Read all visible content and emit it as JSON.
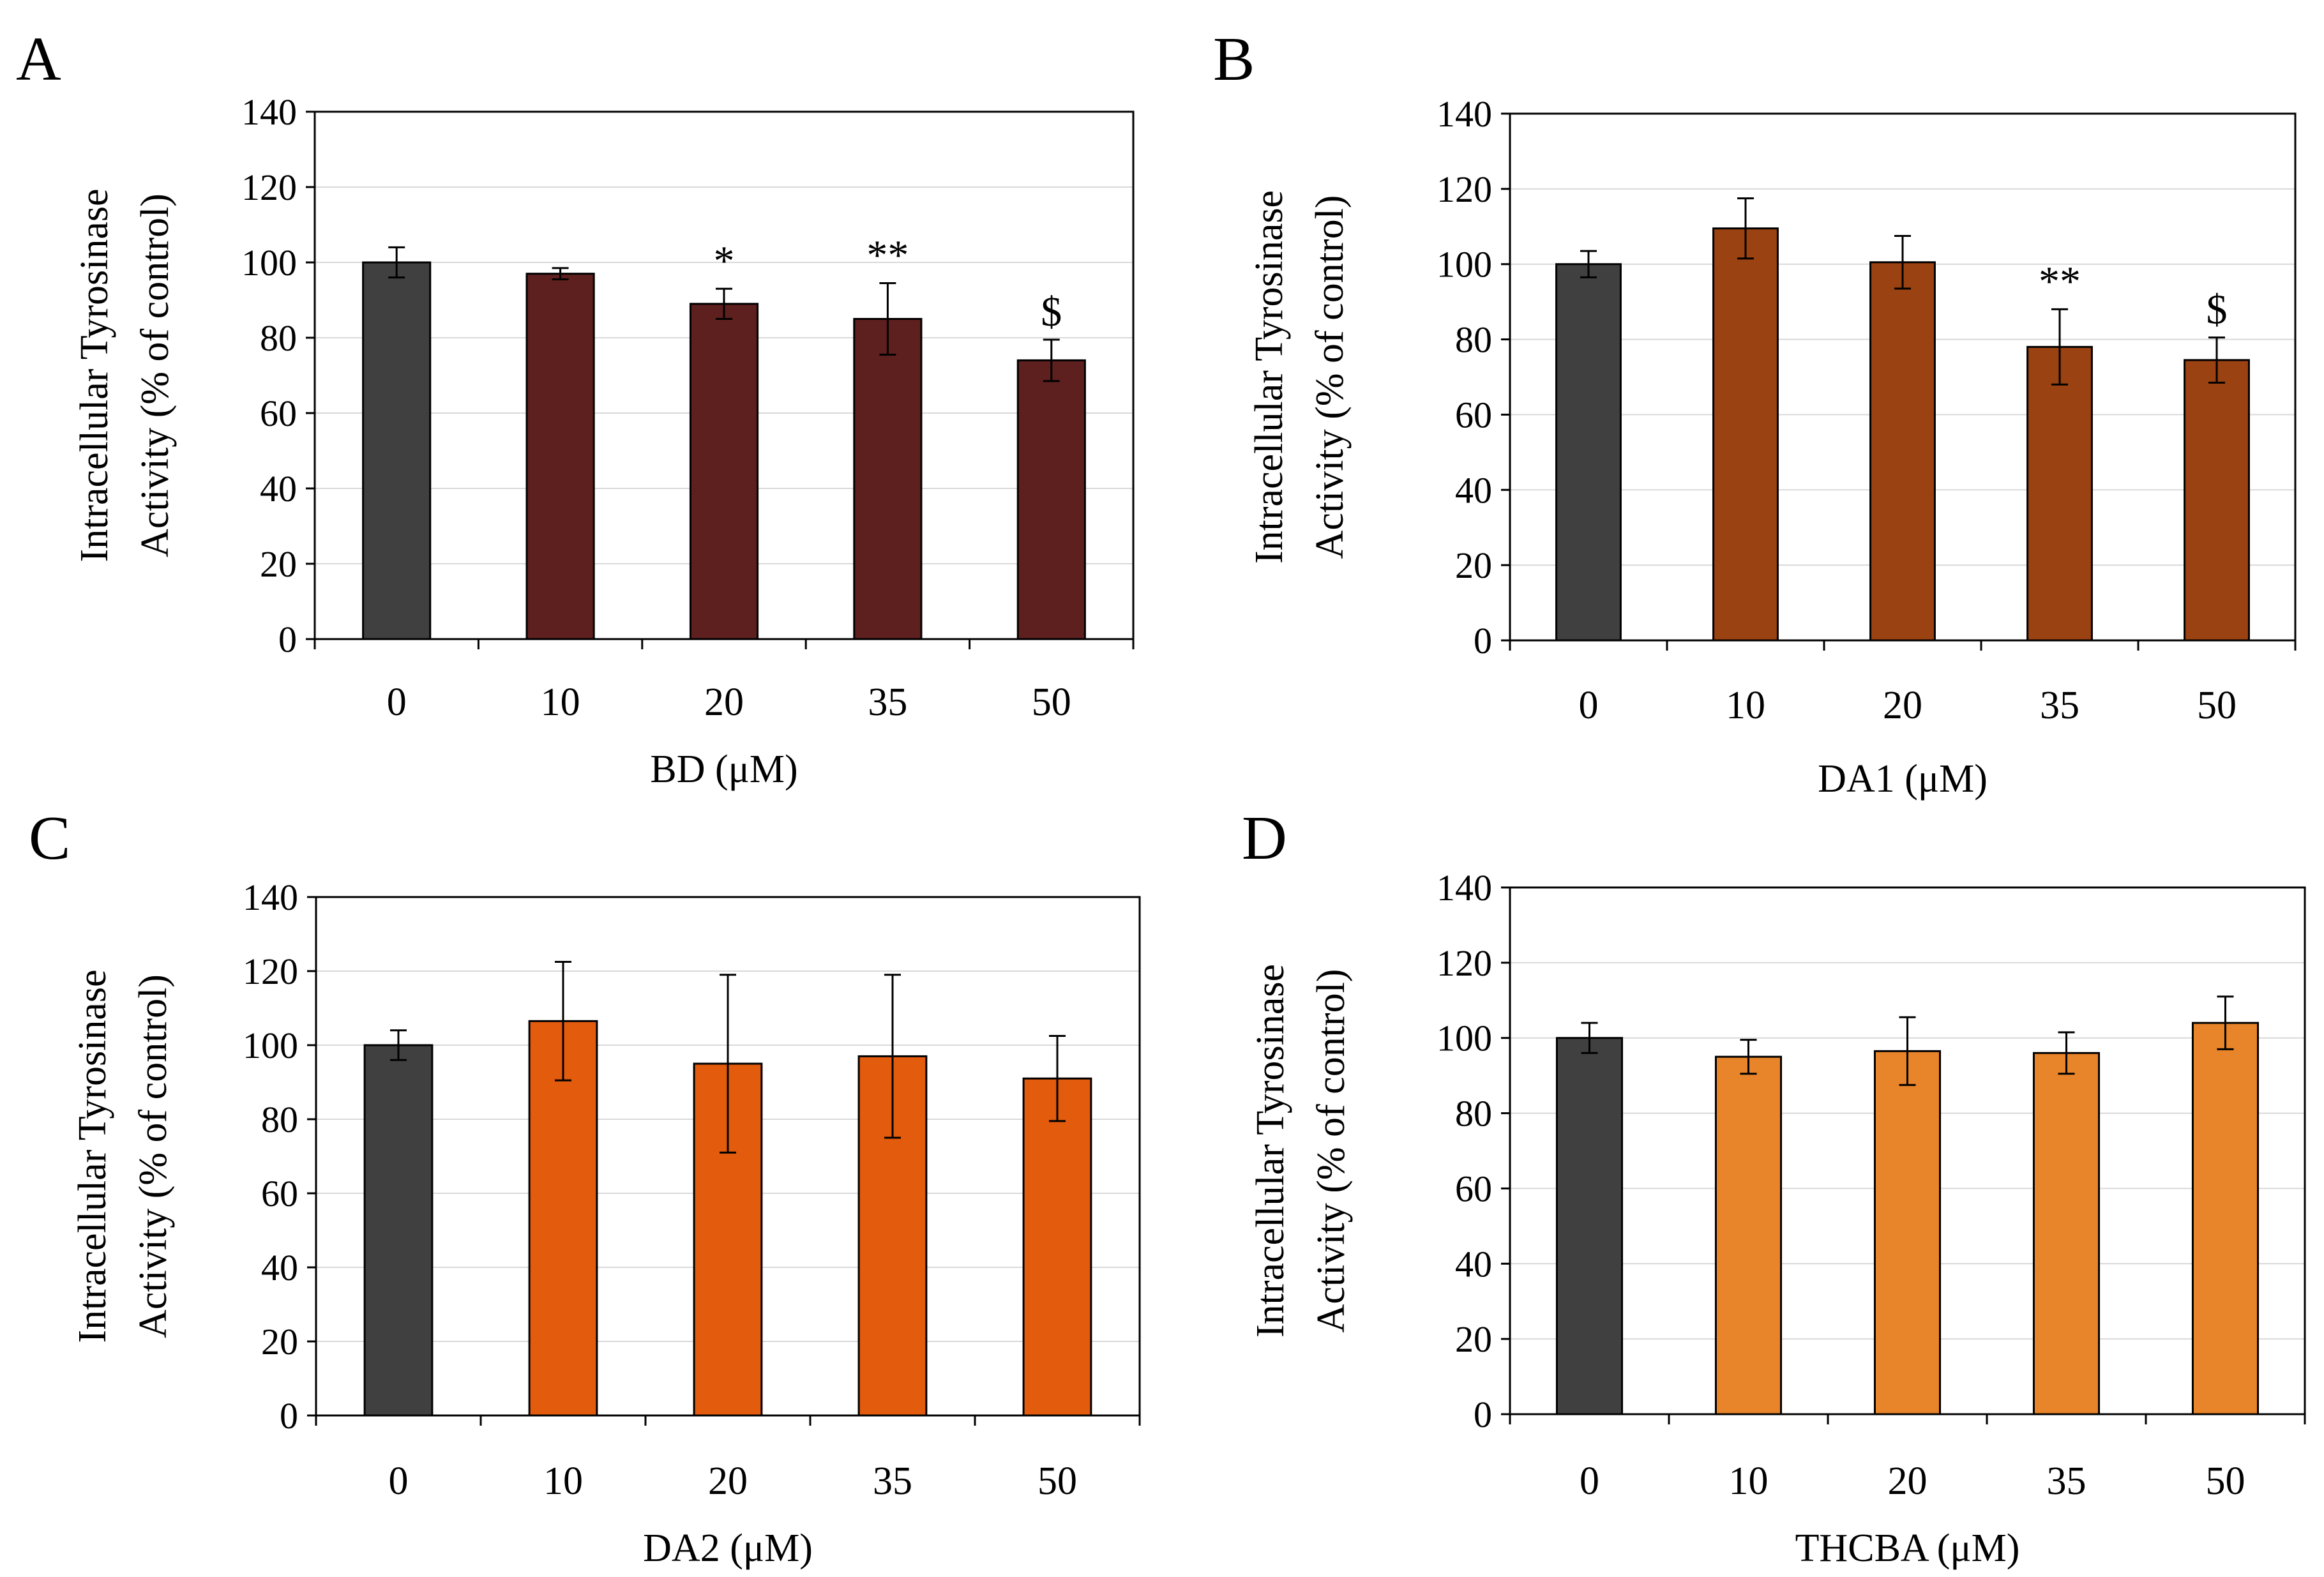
{
  "figure": {
    "panel_labels": [
      "A",
      "B",
      "C",
      "D"
    ]
  },
  "chart_data": [
    {
      "panel": "A",
      "type": "bar",
      "categories": [
        "0",
        "10",
        "20",
        "35",
        "50"
      ],
      "values": [
        100,
        97,
        89,
        85,
        74
      ],
      "errors": [
        4,
        1.5,
        4,
        9.5,
        5.5
      ],
      "significance": [
        "",
        "",
        "*",
        "**",
        "$"
      ],
      "colors": [
        "#404040",
        "#5e1f1f",
        "#5e1f1f",
        "#5e1f1f",
        "#5e1f1f"
      ],
      "xlabel": "BD (μM)",
      "ylabel_line1": "Intracellular  Tyrosinase",
      "ylabel_line2": "Activity (% of control)",
      "yticks": [
        0,
        20,
        40,
        60,
        80,
        100,
        120,
        140
      ],
      "ylim": [
        0,
        140
      ],
      "grid": true
    },
    {
      "panel": "B",
      "type": "bar",
      "categories": [
        "0",
        "10",
        "20",
        "35",
        "50"
      ],
      "values": [
        100,
        109.5,
        100.5,
        78,
        74.5
      ],
      "errors": [
        3.5,
        8,
        7,
        10,
        6
      ],
      "significance": [
        "",
        "",
        "",
        "**",
        "$"
      ],
      "colors": [
        "#404040",
        "#9b4212",
        "#9b4212",
        "#9b4212",
        "#9b4212"
      ],
      "xlabel": "DA1  (μM)",
      "ylabel_line1": "Intracellular  Tyrosinase",
      "ylabel_line2": "Activity (% of control)",
      "yticks": [
        0,
        20,
        40,
        60,
        80,
        100,
        120,
        140
      ],
      "ylim": [
        0,
        140
      ],
      "grid": true
    },
    {
      "panel": "C",
      "type": "bar",
      "categories": [
        "0",
        "10",
        "20",
        "35",
        "50"
      ],
      "values": [
        100,
        106.5,
        95,
        97,
        91
      ],
      "errors": [
        4,
        16,
        24,
        22,
        11.5
      ],
      "significance": [
        "",
        "",
        "",
        "",
        ""
      ],
      "colors": [
        "#404040",
        "#e35b0c",
        "#e35b0c",
        "#e35b0c",
        "#e35b0c"
      ],
      "xlabel": "DA2  (μM)",
      "ylabel_line1": "Intracellular  Tyrosinase",
      "ylabel_line2": "Activity (% of control)",
      "yticks": [
        0,
        20,
        40,
        60,
        80,
        100,
        120,
        140
      ],
      "ylim": [
        0,
        140
      ],
      "grid": true
    },
    {
      "panel": "D",
      "type": "bar",
      "categories": [
        "0",
        "10",
        "20",
        "35",
        "50"
      ],
      "values": [
        100,
        95,
        96.5,
        96,
        104
      ],
      "errors": [
        4,
        4.5,
        9,
        5.5,
        7
      ],
      "significance": [
        "",
        "",
        "",
        "",
        ""
      ],
      "colors": [
        "#404040",
        "#e8842a",
        "#e8842a",
        "#e8842a",
        "#e8842a"
      ],
      "xlabel": "THCBA  (μM)",
      "ylabel_line1": "Intracellular  Tyrosinase",
      "ylabel_line2": "Activity (% of control)",
      "yticks": [
        0,
        20,
        40,
        60,
        80,
        100,
        120,
        140
      ],
      "ylim": [
        0,
        140
      ],
      "grid": true
    }
  ]
}
